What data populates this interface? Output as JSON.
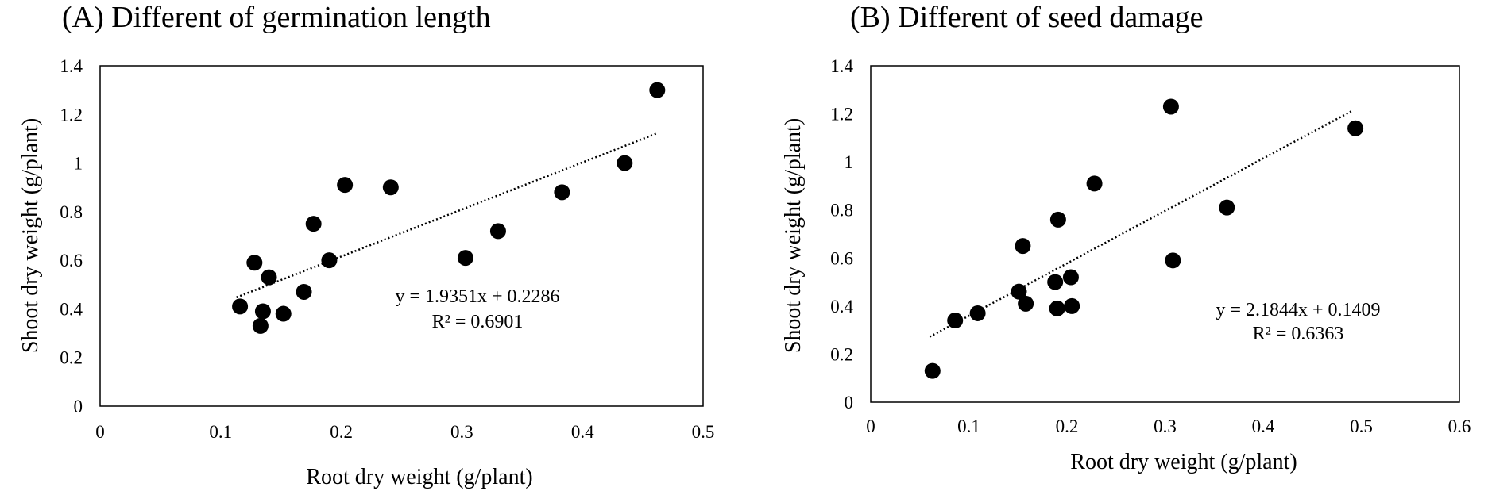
{
  "chart_data": [
    {
      "type": "scatter",
      "title": "(A) Different of germination length",
      "xlabel": "Root dry weight (g/plant)",
      "ylabel": "Shoot dry weight (g/plant)",
      "xlim": [
        0,
        0.5
      ],
      "ylim": [
        0,
        1.4
      ],
      "xticks": [
        "0",
        "0.1",
        "0.2",
        "0.3",
        "0.4",
        "0.5"
      ],
      "yticks": [
        "0",
        "0.2",
        "0.4",
        "0.6",
        "0.8",
        "1",
        "1.2",
        "1.4"
      ],
      "grid": false,
      "marker_color": "#000000",
      "x": [
        0.116,
        0.128,
        0.133,
        0.135,
        0.14,
        0.152,
        0.169,
        0.177,
        0.19,
        0.203,
        0.241,
        0.303,
        0.33,
        0.383,
        0.435,
        0.462
      ],
      "y": [
        0.41,
        0.59,
        0.33,
        0.39,
        0.53,
        0.38,
        0.47,
        0.75,
        0.6,
        0.91,
        0.9,
        0.61,
        0.72,
        0.88,
        1.0,
        1.3
      ],
      "trendline": {
        "style": "dotted",
        "slope": 1.9351,
        "intercept": 0.2286,
        "x_range": [
          0.113,
          0.462
        ]
      },
      "equation": "y = 1.9351x + 0.2286",
      "r2": "R² = 0.6901"
    },
    {
      "type": "scatter",
      "title": "(B) Different of seed damage",
      "xlabel": "Root dry weight (g/plant)",
      "ylabel": "Shoot dry weight (g/plant)",
      "xlim": [
        0,
        0.6
      ],
      "ylim": [
        0,
        1.4
      ],
      "xticks": [
        "0",
        "0.1",
        "0.2",
        "0.3",
        "0.4",
        "0.5",
        "0.6"
      ],
      "yticks": [
        "0",
        "0.2",
        "0.4",
        "0.6",
        "0.8",
        "1",
        "1.2",
        "1.4"
      ],
      "grid": false,
      "marker_color": "#000000",
      "x": [
        0.063,
        0.086,
        0.109,
        0.151,
        0.155,
        0.158,
        0.188,
        0.19,
        0.191,
        0.204,
        0.205,
        0.228,
        0.306,
        0.308,
        0.363,
        0.494
      ],
      "y": [
        0.13,
        0.34,
        0.37,
        0.46,
        0.65,
        0.41,
        0.5,
        0.39,
        0.76,
        0.52,
        0.4,
        0.91,
        1.23,
        0.59,
        0.81,
        1.14
      ],
      "trendline": {
        "style": "dotted",
        "slope": 2.1844,
        "intercept": 0.1409,
        "x_range": [
          0.06,
          0.49
        ]
      },
      "equation": "y = 2.1844x + 0.1409",
      "r2": "R² = 0.6363"
    }
  ]
}
